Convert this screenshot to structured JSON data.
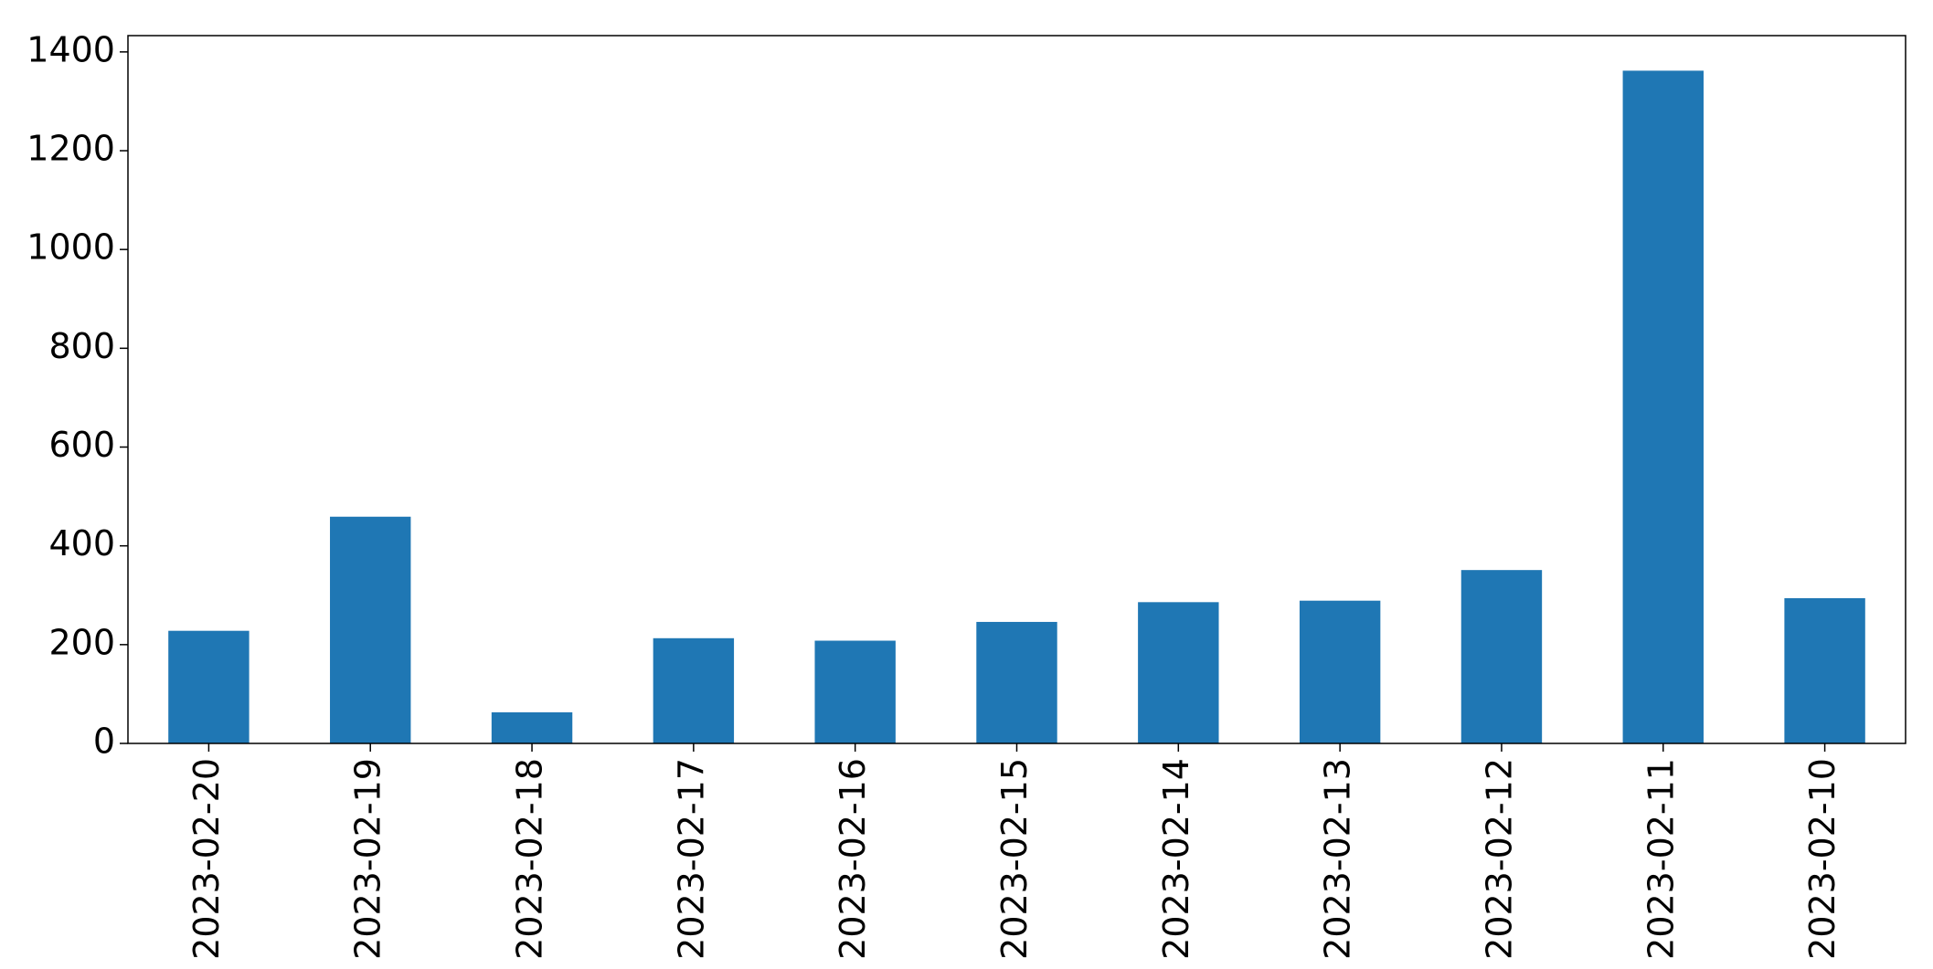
{
  "chart_data": {
    "type": "bar",
    "categories": [
      "2023-02-20",
      "2023-02-19",
      "2023-02-18",
      "2023-02-17",
      "2023-02-16",
      "2023-02-15",
      "2023-02-14",
      "2023-02-13",
      "2023-02-12",
      "2023-02-11",
      "2023-02-10"
    ],
    "values": [
      228,
      459,
      63,
      213,
      208,
      246,
      286,
      289,
      351,
      1362,
      294
    ],
    "color": "#1f77b4",
    "ylim": [
      0,
      1433
    ],
    "yticks": [
      0,
      200,
      400,
      600,
      800,
      1000,
      1200,
      1400
    ],
    "grid": false
  }
}
